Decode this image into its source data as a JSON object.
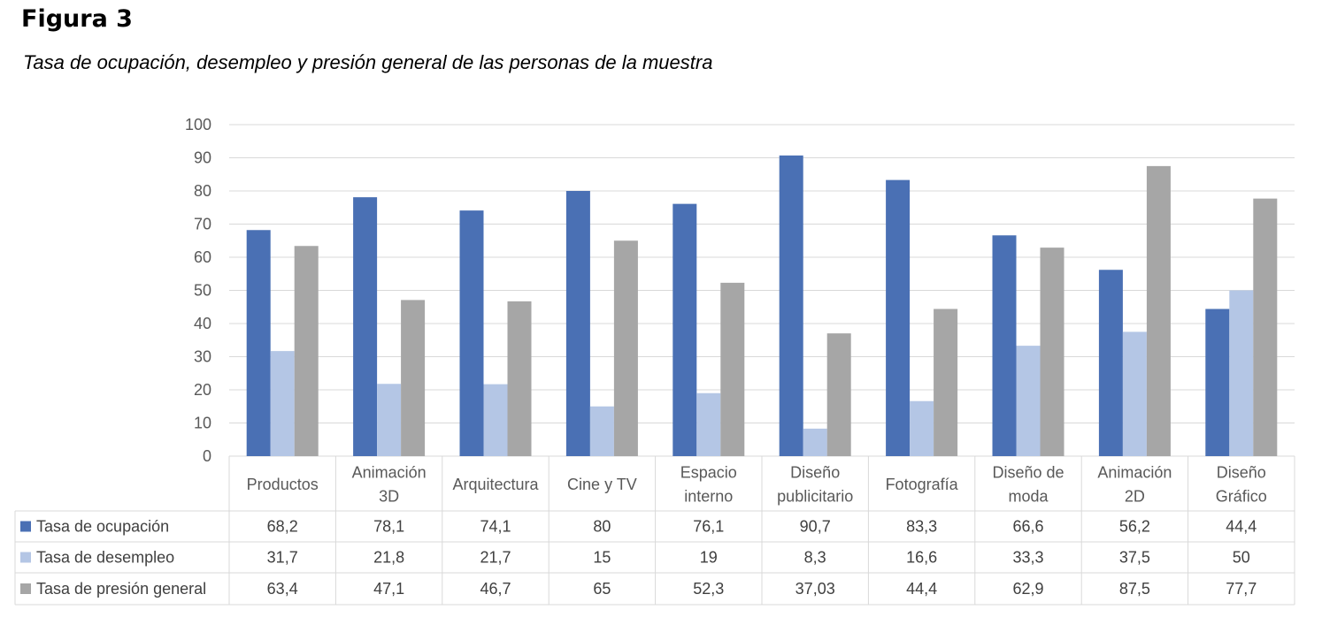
{
  "figure": {
    "title": "Figura 3",
    "subtitle": "Tasa de ocupación, desempleo y presión general de las personas de la muestra"
  },
  "chart_data": {
    "type": "bar",
    "ylim": [
      0,
      100
    ],
    "yticks": [
      0,
      10,
      20,
      30,
      40,
      50,
      60,
      70,
      80,
      90,
      100
    ],
    "grid": true,
    "legend_position": "data-table-left",
    "categories": [
      [
        "Productos"
      ],
      [
        "Animación",
        "3D"
      ],
      [
        "Arquitectura"
      ],
      [
        "Cine y TV"
      ],
      [
        "Espacio",
        "interno"
      ],
      [
        "Diseño",
        "publicitario"
      ],
      [
        "Fotografía"
      ],
      [
        "Diseño de",
        "moda"
      ],
      [
        "Animación",
        "2D"
      ],
      [
        "Diseño",
        "Gráfico"
      ]
    ],
    "series": [
      {
        "name": "Tasa de ocupación",
        "color": "#4a70b4",
        "values": [
          68.2,
          78.1,
          74.1,
          80,
          76.1,
          90.7,
          83.3,
          66.6,
          56.2,
          44.4
        ],
        "labels": [
          "68,2",
          "78,1",
          "74,1",
          "80",
          "76,1",
          "90,7",
          "83,3",
          "66,6",
          "56,2",
          "44,4"
        ]
      },
      {
        "name": "Tasa de desempleo",
        "color": "#b4c6e5",
        "values": [
          31.7,
          21.8,
          21.7,
          15,
          19,
          8.3,
          16.6,
          33.3,
          37.5,
          50
        ],
        "labels": [
          "31,7",
          "21,8",
          "21,7",
          "15",
          "19",
          "8,3",
          "16,6",
          "33,3",
          "37,5",
          "50"
        ]
      },
      {
        "name": "Tasa de presión general",
        "color": "#a6a6a6",
        "values": [
          63.4,
          47.1,
          46.7,
          65,
          52.3,
          37.03,
          44.4,
          62.9,
          87.5,
          77.7
        ],
        "labels": [
          "63,4",
          "47,1",
          "46,7",
          "65",
          "52,3",
          "37,03",
          "44,4",
          "62,9",
          "87,5",
          "77,7"
        ]
      }
    ]
  }
}
